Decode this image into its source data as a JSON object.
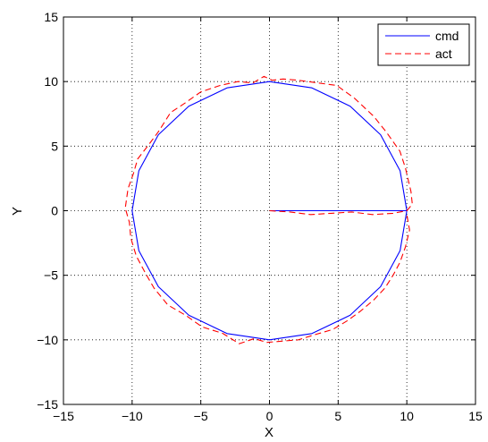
{
  "chart_data": {
    "type": "line",
    "title": "",
    "xlabel": "X",
    "ylabel": "Y",
    "xlim": [
      -15,
      15
    ],
    "ylim": [
      -15,
      15
    ],
    "xticks": [
      "−15",
      "−10",
      "−5",
      "0",
      "5",
      "10",
      "15"
    ],
    "yticks": [
      "−15",
      "−10",
      "−5",
      "0",
      "5",
      "10",
      "15"
    ],
    "xtick_values": [
      -15,
      -10,
      -5,
      0,
      5,
      10,
      15
    ],
    "ytick_values": [
      -15,
      -10,
      -5,
      0,
      5,
      10,
      15
    ],
    "grid": true,
    "legend_position": "top-right",
    "series": [
      {
        "name": "cmd",
        "color": "#0000ff",
        "style": "solid",
        "description": "radial move from origin to (10,0) then full circle of radius 10",
        "points": [
          [
            0,
            0
          ],
          [
            10,
            0
          ],
          [
            10,
            0
          ],
          [
            9.511,
            3.09
          ],
          [
            8.09,
            5.878
          ],
          [
            5.878,
            8.09
          ],
          [
            3.09,
            9.511
          ],
          [
            0,
            10
          ],
          [
            -3.09,
            9.511
          ],
          [
            -5.878,
            8.09
          ],
          [
            -8.09,
            5.878
          ],
          [
            -9.511,
            3.09
          ],
          [
            -10,
            0
          ],
          [
            -9.511,
            -3.09
          ],
          [
            -8.09,
            -5.878
          ],
          [
            -5.878,
            -8.09
          ],
          [
            -3.09,
            -9.511
          ],
          [
            0,
            -10
          ],
          [
            3.09,
            -9.511
          ],
          [
            5.878,
            -8.09
          ],
          [
            8.09,
            -5.878
          ],
          [
            9.511,
            -3.09
          ],
          [
            10,
            0
          ]
        ]
      },
      {
        "name": "act",
        "color": "#ff0000",
        "style": "dashed",
        "points": [
          [
            0,
            0
          ],
          [
            1.5,
            -0.1
          ],
          [
            3,
            -0.3
          ],
          [
            4.5,
            -0.2
          ],
          [
            6,
            -0.1
          ],
          [
            7.5,
            -0.3
          ],
          [
            9,
            -0.2
          ],
          [
            10,
            0
          ],
          [
            10.4,
            0.5
          ],
          [
            10.3,
            1.5
          ],
          [
            9.9,
            3.3
          ],
          [
            9.5,
            4.6
          ],
          [
            8.5,
            6.1
          ],
          [
            7.6,
            7.3
          ],
          [
            6.2,
            8.7
          ],
          [
            4.9,
            9.7
          ],
          [
            3.5,
            9.9
          ],
          [
            2.1,
            10.1
          ],
          [
            1.0,
            10.2
          ],
          [
            0.2,
            10.1
          ],
          [
            -0.4,
            10.4
          ],
          [
            -1.2,
            9.9
          ],
          [
            -2.3,
            10.0
          ],
          [
            -3.6,
            9.7
          ],
          [
            -5.0,
            9.2
          ],
          [
            -6.2,
            8.3
          ],
          [
            -7.2,
            7.6
          ],
          [
            -8.1,
            6.1
          ],
          [
            -8.8,
            5.1
          ],
          [
            -9.6,
            4.0
          ],
          [
            -9.9,
            2.9
          ],
          [
            -10.3,
            1.7
          ],
          [
            -10.5,
            0.2
          ],
          [
            -10.2,
            -0.9
          ],
          [
            -10.1,
            -2.1
          ],
          [
            -9.7,
            -3.5
          ],
          [
            -9.0,
            -4.9
          ],
          [
            -8.4,
            -6.0
          ],
          [
            -7.4,
            -7.3
          ],
          [
            -6.1,
            -8.1
          ],
          [
            -4.9,
            -9.0
          ],
          [
            -3.4,
            -9.5
          ],
          [
            -2.2,
            -10.3
          ],
          [
            -1.1,
            -9.9
          ],
          [
            -0.2,
            -10.2
          ],
          [
            0.9,
            -10.1
          ],
          [
            2.1,
            -10.0
          ],
          [
            3.3,
            -9.6
          ],
          [
            4.6,
            -9.2
          ],
          [
            5.7,
            -8.5
          ],
          [
            6.6,
            -7.8
          ],
          [
            7.6,
            -6.9
          ],
          [
            8.4,
            -6.0
          ],
          [
            9.0,
            -5.0
          ],
          [
            9.5,
            -4.0
          ],
          [
            9.9,
            -2.8
          ],
          [
            10.2,
            -1.5
          ],
          [
            10.0,
            -0.3
          ]
        ]
      }
    ]
  }
}
